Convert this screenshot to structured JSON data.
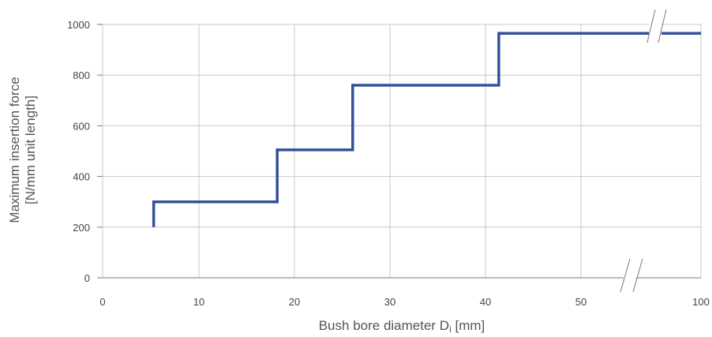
{
  "chart_data": {
    "type": "line",
    "step": true,
    "title": "",
    "xlabel": "Bush bore diameter D",
    "xlabel_sub": "i",
    "xlabel_suffix": " [mm]",
    "ylabel_line1": "Maximum insertion force",
    "ylabel_line2": "[N/mm unit length]",
    "x_ticks": [
      0,
      10,
      20,
      30,
      40,
      50,
      100
    ],
    "y_ticks": [
      0,
      200,
      400,
      600,
      800,
      1000
    ],
    "xlim": [
      0,
      100
    ],
    "ylim": [
      0,
      1000
    ],
    "x_axis_break": "between 50 and 100",
    "grid": true,
    "line_color": "#34509a",
    "series": [
      {
        "x": [
          5.3,
          5.3,
          18.2,
          18.2,
          26.1,
          26.1,
          41.4,
          41.4,
          100
        ],
        "y": [
          200,
          300,
          300,
          505,
          505,
          760,
          760,
          965,
          965
        ]
      }
    ]
  }
}
